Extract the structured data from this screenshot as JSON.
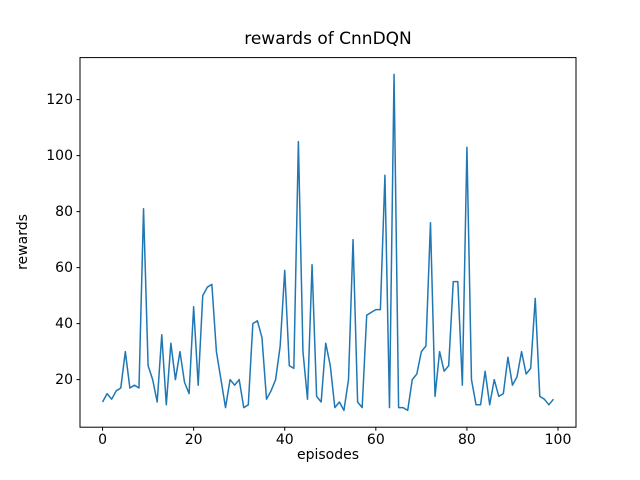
{
  "chart_data": {
    "type": "line",
    "title": "rewards of CnnDQN",
    "xlabel": "episodes",
    "ylabel": "rewards",
    "line_color": "#1f77b4",
    "line_width": 1.5,
    "grid": false,
    "legend": "none",
    "xlim": [
      -4.95,
      103.95
    ],
    "ylim": [
      3,
      135
    ],
    "xticks": [
      0,
      20,
      40,
      60,
      80,
      100
    ],
    "yticks": [
      20,
      40,
      60,
      80,
      100,
      120
    ],
    "x": [
      0,
      1,
      2,
      3,
      4,
      5,
      6,
      7,
      8,
      9,
      10,
      11,
      12,
      13,
      14,
      15,
      16,
      17,
      18,
      19,
      20,
      21,
      22,
      23,
      24,
      25,
      26,
      27,
      28,
      29,
      30,
      31,
      32,
      33,
      34,
      35,
      36,
      37,
      38,
      39,
      40,
      41,
      42,
      43,
      44,
      45,
      46,
      47,
      48,
      49,
      50,
      51,
      52,
      53,
      54,
      55,
      56,
      57,
      58,
      59,
      60,
      61,
      62,
      63,
      64,
      65,
      66,
      67,
      68,
      69,
      70,
      71,
      72,
      73,
      74,
      75,
      76,
      77,
      78,
      79,
      80,
      81,
      82,
      83,
      84,
      85,
      86,
      87,
      88,
      89,
      90,
      91,
      92,
      93,
      94,
      95,
      96,
      97,
      98,
      99
    ],
    "values": [
      12,
      15,
      13,
      16,
      17,
      30,
      17,
      18,
      17,
      81,
      25,
      20,
      12,
      36,
      11,
      33,
      20,
      30,
      19,
      15,
      46,
      18,
      50,
      53,
      54,
      30,
      20,
      10,
      20,
      18,
      20,
      10,
      11,
      40,
      41,
      35,
      13,
      16,
      20,
      32,
      59,
      25,
      24,
      105,
      30,
      13,
      61,
      14,
      12,
      33,
      25,
      10,
      12,
      9,
      20,
      70,
      12,
      10,
      43,
      44,
      45,
      45,
      93,
      10,
      129,
      10,
      10,
      9,
      20,
      22,
      30,
      32,
      76,
      14,
      30,
      23,
      25,
      55,
      55,
      18,
      103,
      20,
      11,
      11,
      23,
      11,
      20,
      14,
      15,
      28,
      18,
      21,
      30,
      22,
      24,
      49,
      14,
      13,
      11,
      13
    ]
  }
}
